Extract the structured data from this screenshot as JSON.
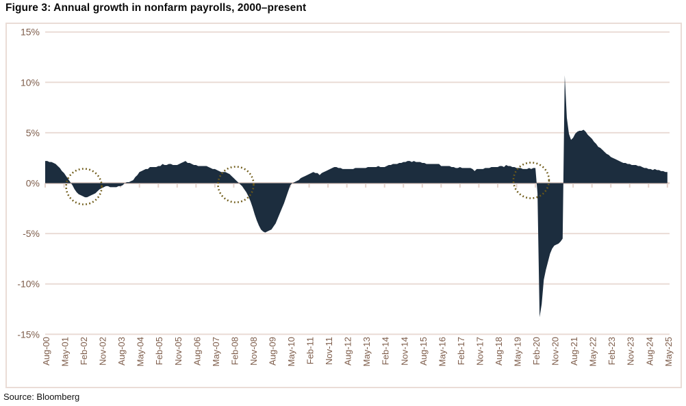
{
  "title": "Figure 3: Annual growth in nonfarm payrolls, 2000–present",
  "source": "Source: Bloomberg",
  "chart_data": {
    "type": "area",
    "series_name": "Annual growth in nonfarm payrolls (% YoY)",
    "start_month": "Aug-00",
    "end_month": "May-25",
    "months_per_tick": 9,
    "x_tick_labels": [
      "Aug-00",
      "May-01",
      "Feb-02",
      "Nov-02",
      "Aug-03",
      "May-04",
      "Feb-05",
      "Nov-05",
      "Aug-06",
      "May-07",
      "Feb-08",
      "Nov-08",
      "Aug-09",
      "May-10",
      "Feb-11",
      "Nov-11",
      "Aug-12",
      "May-13",
      "Feb-14",
      "Nov-14",
      "Aug-15",
      "May-16",
      "Feb-17",
      "Nov-17",
      "Aug-18",
      "May-19",
      "Feb-20",
      "Nov-20",
      "Aug-21",
      "May-22",
      "Feb-23",
      "Nov-23",
      "Aug-24",
      "May-25"
    ],
    "y_tick_labels": [
      "15%",
      "10%",
      "5%",
      "0%",
      "-5%",
      "-10%",
      "-15%"
    ],
    "y_ticks": [
      15,
      10,
      5,
      0,
      -5,
      -10,
      -15
    ],
    "ylim": [
      -15,
      15
    ],
    "grid": true,
    "values": [
      2.2,
      2.2,
      2.1,
      2.1,
      2.0,
      1.9,
      1.7,
      1.5,
      1.2,
      1.0,
      0.7,
      0.4,
      0.1,
      -0.2,
      -0.6,
      -0.9,
      -1.1,
      -1.2,
      -1.3,
      -1.4,
      -1.4,
      -1.3,
      -1.2,
      -1.1,
      -1.0,
      -0.8,
      -0.6,
      -0.5,
      -0.4,
      -0.3,
      -0.3,
      -0.4,
      -0.4,
      -0.4,
      -0.4,
      -0.3,
      -0.3,
      -0.2,
      0.0,
      0.1,
      0.1,
      0.2,
      0.3,
      0.6,
      0.8,
      1.1,
      1.2,
      1.3,
      1.4,
      1.4,
      1.6,
      1.6,
      1.6,
      1.6,
      1.7,
      1.7,
      1.9,
      1.8,
      1.8,
      1.9,
      1.9,
      1.8,
      1.8,
      1.8,
      1.9,
      2.0,
      2.1,
      2.2,
      2.0,
      2.0,
      1.9,
      1.8,
      1.8,
      1.7,
      1.7,
      1.7,
      1.7,
      1.7,
      1.6,
      1.5,
      1.4,
      1.4,
      1.3,
      1.2,
      1.1,
      1.1,
      1.1,
      1.0,
      0.9,
      0.7,
      0.5,
      0.3,
      0.1,
      -0.1,
      -0.3,
      -0.6,
      -0.9,
      -1.3,
      -1.8,
      -2.4,
      -3.1,
      -3.7,
      -4.2,
      -4.6,
      -4.8,
      -4.9,
      -4.8,
      -4.7,
      -4.6,
      -4.3,
      -4.0,
      -3.5,
      -3.0,
      -2.5,
      -2.0,
      -1.4,
      -0.8,
      -0.2,
      0.0,
      0.1,
      0.2,
      0.3,
      0.5,
      0.6,
      0.7,
      0.8,
      0.9,
      1.0,
      1.1,
      1.0,
      1.0,
      0.8,
      1.0,
      1.1,
      1.2,
      1.3,
      1.4,
      1.5,
      1.6,
      1.6,
      1.5,
      1.5,
      1.4,
      1.4,
      1.4,
      1.4,
      1.4,
      1.4,
      1.5,
      1.5,
      1.5,
      1.5,
      1.5,
      1.5,
      1.6,
      1.6,
      1.6,
      1.6,
      1.6,
      1.7,
      1.6,
      1.6,
      1.6,
      1.7,
      1.8,
      1.8,
      1.9,
      1.9,
      1.9,
      2.0,
      2.0,
      2.1,
      2.1,
      2.2,
      2.2,
      2.1,
      2.2,
      2.1,
      2.1,
      2.1,
      2.0,
      2.0,
      1.9,
      1.9,
      1.9,
      1.9,
      1.9,
      1.9,
      1.9,
      1.7,
      1.7,
      1.7,
      1.7,
      1.7,
      1.6,
      1.6,
      1.5,
      1.5,
      1.6,
      1.5,
      1.5,
      1.5,
      1.5,
      1.5,
      1.4,
      1.2,
      1.4,
      1.4,
      1.4,
      1.4,
      1.5,
      1.5,
      1.5,
      1.6,
      1.6,
      1.6,
      1.6,
      1.7,
      1.7,
      1.6,
      1.8,
      1.7,
      1.7,
      1.6,
      1.6,
      1.5,
      1.5,
      1.5,
      1.4,
      1.4,
      1.4,
      1.5,
      1.4,
      1.5,
      1.5,
      -1.0,
      -13.3,
      -12.0,
      -9.6,
      -8.6,
      -7.8,
      -7.0,
      -6.5,
      -6.2,
      -6.1,
      -6.0,
      -5.8,
      -5.5,
      10.7,
      6.5,
      4.9,
      4.3,
      4.5,
      4.9,
      5.1,
      5.2,
      5.2,
      5.3,
      5.1,
      4.8,
      4.6,
      4.4,
      4.1,
      3.9,
      3.6,
      3.5,
      3.3,
      3.1,
      2.9,
      2.8,
      2.6,
      2.5,
      2.4,
      2.3,
      2.2,
      2.1,
      2.0,
      2.0,
      1.9,
      1.9,
      1.8,
      1.8,
      1.8,
      1.7,
      1.7,
      1.6,
      1.5,
      1.5,
      1.4,
      1.4,
      1.3,
      1.4,
      1.3,
      1.3,
      1.2,
      1.2,
      1.1,
      1.1
    ],
    "annotations": [
      {
        "type": "dotted-circle",
        "note": "2001 recession dip",
        "month_index": 18.5,
        "dy": 5
      },
      {
        "type": "dotted-circle",
        "note": "2008 recession start",
        "month_index": 91,
        "dy": 2
      },
      {
        "type": "dotted-circle",
        "note": "2020 recession start",
        "month_index": 232,
        "dy": -4
      }
    ],
    "colors": {
      "area": "#1c2d3e",
      "grid": "#eadcd6",
      "zero_axis": "#e4d2cb",
      "axis_text": "#7d5c4a",
      "circle": "#6e5a17",
      "border": "#eadcd6",
      "title_text": "#0a0a0a"
    }
  }
}
